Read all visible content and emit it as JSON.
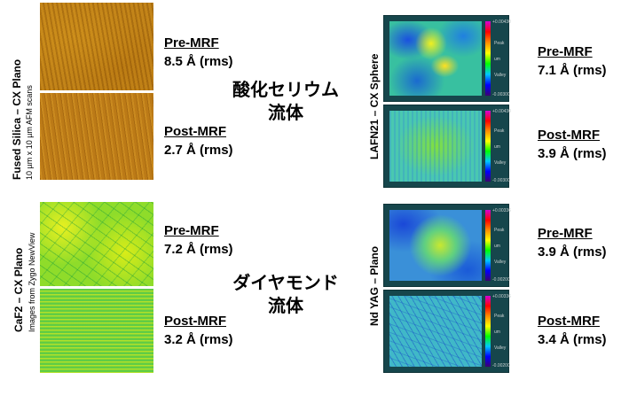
{
  "left_column": {
    "group1": {
      "title": "Fused Silica – CX Plano",
      "subtitle": "10 µm x 10 µm AFM scans",
      "pre": {
        "label": "Pre-MRF",
        "value": "8.5 Å (rms)"
      },
      "post": {
        "label": "Post-MRF",
        "value": "2.7 Å (rms)"
      }
    },
    "group2": {
      "title": "CaF2 – CX Plano",
      "subtitle": "Images from Zygo NewView",
      "pre": {
        "label": "Pre-MRF",
        "value": "7.2 Å (rms)"
      },
      "post": {
        "label": "Post-MRF",
        "value": "3.2 Å (rms)"
      }
    }
  },
  "center": {
    "slurry1": {
      "line1": "酸化セリウム",
      "line2": "流体"
    },
    "slurry2": {
      "line1": "ダイヤモンド",
      "line2": "流体"
    }
  },
  "right_column": {
    "group1": {
      "title": "LAFN21 – CX Sphere",
      "pre": {
        "label": "Pre-MRF",
        "value": "7.1 Å (rms)"
      },
      "post": {
        "label": "Post-MRF",
        "value": "3.9 Å (rms)"
      },
      "pre_scale": {
        "top": "+0.00430",
        "peak": "Peak",
        "unit": "um",
        "valley": "Valley",
        "bottom": "-0.00300"
      },
      "post_scale": {
        "top": "+0.00430",
        "peak": "Peak",
        "unit": "um",
        "valley": "Valley",
        "bottom": "-0.00300"
      }
    },
    "group2": {
      "title": "Nd YAG – Plano",
      "pre": {
        "label": "Pre-MRF",
        "value": "3.9 Å (rms)"
      },
      "post": {
        "label": "Post-MRF",
        "value": "3.4 Å (rms)"
      },
      "pre_scale": {
        "top": "+0.00336",
        "peak": "Peak",
        "unit": "um",
        "valley": "Valley",
        "bottom": "-0.00200"
      },
      "post_scale": {
        "top": "+0.00336",
        "peak": "Peak",
        "unit": "um",
        "valley": "Valley",
        "bottom": "-0.00200"
      }
    }
  }
}
